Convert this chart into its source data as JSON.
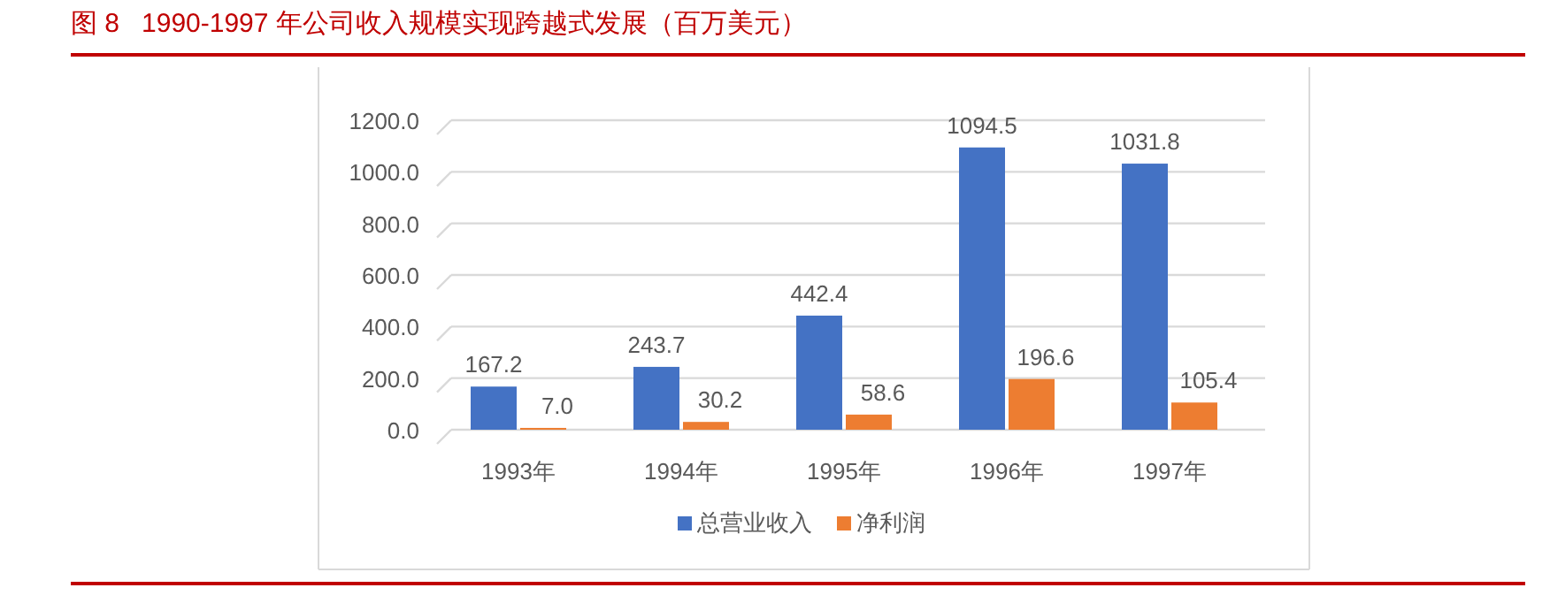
{
  "chart_data": {
    "type": "bar",
    "title": "图 8   1990-1997 年公司收入规模实现跨越式发展（百万美元）",
    "categories": [
      "1993年",
      "1994年",
      "1995年",
      "1996年",
      "1997年"
    ],
    "series": [
      {
        "name": "总营业收入",
        "color": "#4472c4",
        "values": [
          167.2,
          243.7,
          442.4,
          1094.5,
          1031.8
        ],
        "value_labels": [
          "167.2",
          "243.7",
          "442.4",
          "1094.5",
          "1031.8"
        ]
      },
      {
        "name": "净利润",
        "color": "#ed7d31",
        "values": [
          7.0,
          30.2,
          58.6,
          196.6,
          105.4
        ],
        "value_labels": [
          "7.0",
          "30.2",
          "58.6",
          "196.6",
          "105.4"
        ]
      }
    ],
    "ylim": [
      0,
      1200
    ],
    "yticks": [
      {
        "value": 0,
        "label": "0.0"
      },
      {
        "value": 200,
        "label": "200.0"
      },
      {
        "value": 400,
        "label": "400.0"
      },
      {
        "value": 600,
        "label": "600.0"
      },
      {
        "value": 800,
        "label": "800.0"
      },
      {
        "value": 1000,
        "label": "1000.0"
      },
      {
        "value": 1200,
        "label": "1200.0"
      }
    ],
    "grid": "y",
    "legend": "bottom"
  }
}
